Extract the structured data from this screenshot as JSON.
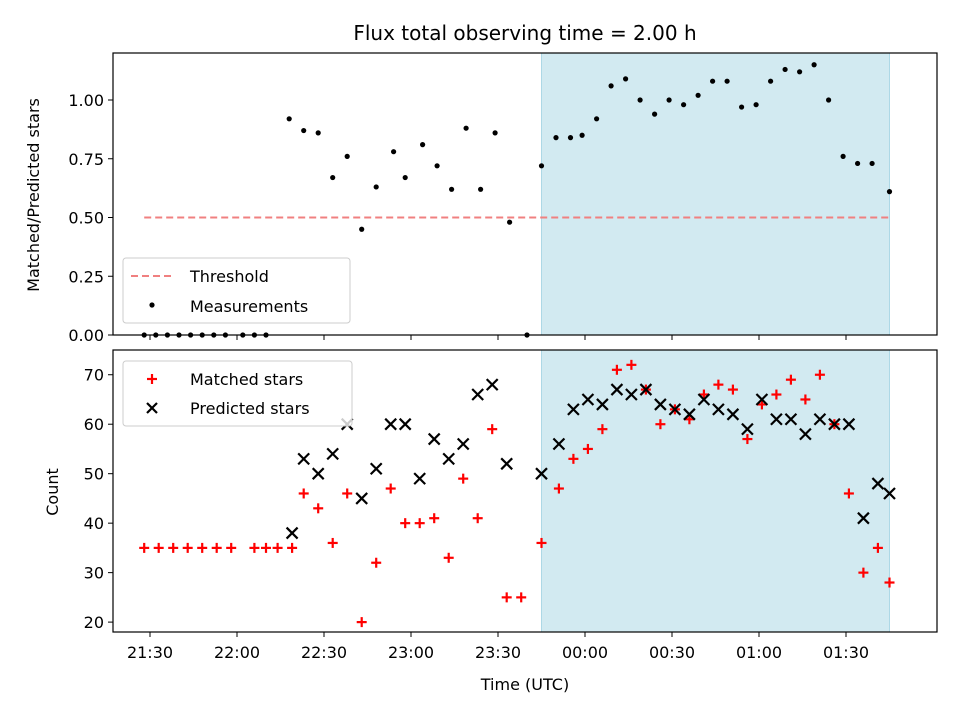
{
  "chart_data": [
    {
      "type": "scatter",
      "title": "Flux total observing time = 2.00 h",
      "xlabel": "",
      "ylabel": "Matched/Predicted stars",
      "ylim": [
        0,
        1.2
      ],
      "yticks": [
        "0.00",
        "0.25",
        "0.50",
        "0.75",
        "1.00"
      ],
      "ytick_values": [
        0,
        0.25,
        0.5,
        0.75,
        1.0
      ],
      "highlight_span": [
        "23:45",
        "01:45"
      ],
      "highlight_color": "#add8e6",
      "threshold": {
        "name": "Threshold",
        "y": 0.5,
        "x_range": [
          "21:28",
          "01:45"
        ],
        "color": "#f08080",
        "style": "dashed"
      },
      "series": [
        {
          "name": "Measurements",
          "marker": "dot",
          "color": "#000000",
          "x": [
            "21:28",
            "21:32",
            "21:36",
            "21:40",
            "21:44",
            "21:48",
            "21:52",
            "21:56",
            "22:02",
            "22:06",
            "22:10",
            "22:18",
            "22:23",
            "22:28",
            "22:33",
            "22:38",
            "22:43",
            "22:48",
            "22:54",
            "22:58",
            "23:04",
            "23:09",
            "23:14",
            "23:19",
            "23:24",
            "23:29",
            "23:34",
            "23:40",
            "23:45",
            "23:50",
            "23:55",
            "23:59",
            "00:04",
            "00:09",
            "00:14",
            "00:19",
            "00:24",
            "00:29",
            "00:34",
            "00:39",
            "00:44",
            "00:49",
            "00:54",
            "00:59",
            "01:04",
            "01:09",
            "01:14",
            "01:19",
            "01:24",
            "01:29",
            "01:34",
            "01:39",
            "01:45"
          ],
          "y": [
            0,
            0,
            0,
            0,
            0,
            0,
            0,
            0,
            0,
            0,
            0,
            0.92,
            0.87,
            0.86,
            0.67,
            0.76,
            0.45,
            0.63,
            0.78,
            0.67,
            0.81,
            0.72,
            0.62,
            0.88,
            0.62,
            0.86,
            0.48,
            0,
            0.72,
            0.84,
            0.84,
            0.85,
            0.92,
            1.06,
            1.09,
            1.0,
            0.94,
            1.0,
            0.98,
            1.02,
            1.08,
            1.08,
            0.97,
            0.98,
            1.08,
            1.13,
            1.12,
            1.15,
            1.0,
            0.76,
            0.73,
            0.73,
            0.61
          ]
        }
      ],
      "legend": "lower-left"
    },
    {
      "type": "scatter",
      "title": "",
      "xlabel": "Time (UTC)",
      "ylabel": "Count",
      "ylim": [
        18,
        75
      ],
      "yticks": [
        "20",
        "30",
        "40",
        "50",
        "60",
        "70"
      ],
      "ytick_values": [
        20,
        30,
        40,
        50,
        60,
        70
      ],
      "xticks": [
        "21:30",
        "22:00",
        "22:30",
        "23:00",
        "23:30",
        "00:00",
        "00:30",
        "01:00",
        "01:30"
      ],
      "highlight_span": [
        "23:45",
        "01:45"
      ],
      "highlight_color": "#add8e6",
      "series": [
        {
          "name": "Matched stars",
          "marker": "plus",
          "color": "#ff0000",
          "x": [
            "21:28",
            "21:33",
            "21:38",
            "21:43",
            "21:48",
            "21:53",
            "21:58",
            "22:06",
            "22:10",
            "22:14",
            "22:19",
            "22:23",
            "22:28",
            "22:33",
            "22:38",
            "22:43",
            "22:48",
            "22:53",
            "22:58",
            "23:03",
            "23:08",
            "23:13",
            "23:18",
            "23:23",
            "23:28",
            "23:33",
            "23:38",
            "23:45",
            "23:51",
            "23:56",
            "00:01",
            "00:06",
            "00:11",
            "00:16",
            "00:21",
            "00:26",
            "00:31",
            "00:36",
            "00:41",
            "00:46",
            "00:51",
            "00:56",
            "01:01",
            "01:06",
            "01:11",
            "01:16",
            "01:21",
            "01:26",
            "01:31",
            "01:36",
            "01:41",
            "01:45"
          ],
          "y": [
            35,
            35,
            35,
            35,
            35,
            35,
            35,
            35,
            35,
            35,
            35,
            46,
            43,
            36,
            46,
            20,
            32,
            47,
            40,
            40,
            41,
            33,
            49,
            41,
            59,
            25,
            25,
            36,
            47,
            53,
            55,
            59,
            71,
            72,
            67,
            60,
            63,
            61,
            66,
            68,
            67,
            57,
            64,
            66,
            69,
            65,
            70,
            60,
            46,
            30,
            35,
            28
          ]
        },
        {
          "name": "Predicted stars",
          "marker": "x",
          "color": "#000000",
          "x": [
            "22:19",
            "22:23",
            "22:28",
            "22:33",
            "22:38",
            "22:43",
            "22:48",
            "22:53",
            "22:58",
            "23:03",
            "23:08",
            "23:13",
            "23:18",
            "23:23",
            "23:28",
            "23:33",
            "23:45",
            "23:51",
            "23:56",
            "00:01",
            "00:06",
            "00:11",
            "00:16",
            "00:21",
            "00:26",
            "00:31",
            "00:36",
            "00:41",
            "00:46",
            "00:51",
            "00:56",
            "01:01",
            "01:06",
            "01:11",
            "01:16",
            "01:21",
            "01:26",
            "01:31",
            "01:36",
            "01:41",
            "01:45"
          ],
          "y": [
            38,
            53,
            50,
            54,
            60,
            45,
            51,
            60,
            60,
            49,
            57,
            53,
            56,
            66,
            68,
            52,
            50,
            56,
            63,
            65,
            64,
            67,
            66,
            67,
            64,
            63,
            62,
            65,
            63,
            62,
            59,
            65,
            61,
            61,
            58,
            61,
            60,
            60,
            41,
            48,
            46
          ]
        }
      ],
      "legend": "upper-left"
    }
  ]
}
